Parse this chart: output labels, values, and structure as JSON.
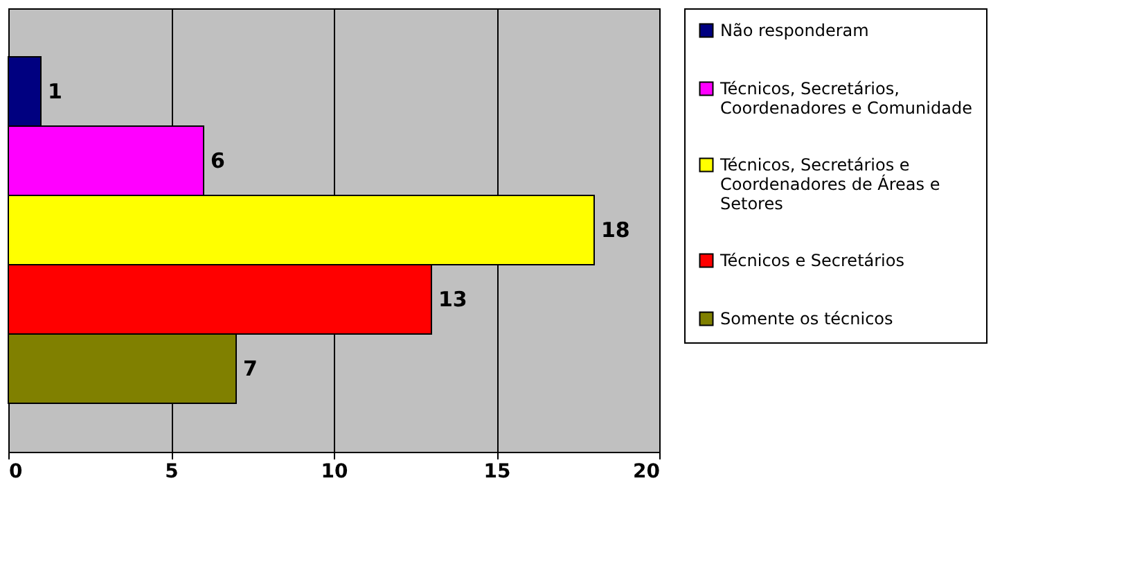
{
  "chart_data": {
    "type": "bar",
    "orientation": "horizontal",
    "categories": [
      null,
      null,
      null,
      null,
      null
    ],
    "series": [
      {
        "name": "Não responderam",
        "color": "#000080",
        "values": [
          1,
          null,
          null,
          null,
          null
        ]
      },
      {
        "name": "Técnicos, Secretários, Coordenadores e Comunidade",
        "color": "#ff00ff",
        "values": [
          null,
          6,
          null,
          null,
          null
        ]
      },
      {
        "name": "Técnicos, Secretários e Coordenadores de Áreas e Setores",
        "color": "#ffff00",
        "values": [
          null,
          null,
          18,
          null,
          null
        ]
      },
      {
        "name": "Técnicos e Secretários",
        "color": "#ff0000",
        "values": [
          null,
          null,
          null,
          13,
          null
        ]
      },
      {
        "name": "Somente os técnicos",
        "color": "#808000",
        "values": [
          null,
          null,
          null,
          null,
          7
        ]
      }
    ],
    "xlim": [
      0,
      20
    ],
    "xticks": [
      0,
      5,
      10,
      15,
      20
    ],
    "grid": "x",
    "legend": "right",
    "data_labels": true,
    "tick_labels": "x"
  }
}
